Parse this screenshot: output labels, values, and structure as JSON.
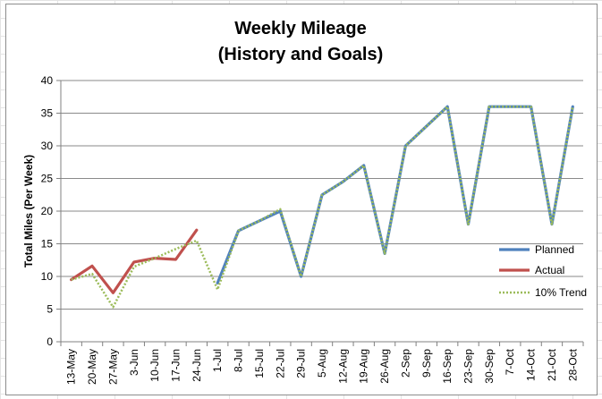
{
  "chart_data": {
    "type": "line",
    "title_lines": [
      "Weekly Mileage",
      "(History and Goals)"
    ],
    "ylabel": "Total Miles (Per Week)",
    "xlabel": "",
    "ylim": [
      0,
      40
    ],
    "yticks": [
      0,
      5,
      10,
      15,
      20,
      25,
      30,
      35,
      40
    ],
    "grid": "horizontal",
    "legend_position": "right",
    "categories": [
      "13-May",
      "20-May",
      "27-May",
      "3-Jun",
      "10-Jun",
      "17-Jun",
      "24-Jun",
      "1-Jul",
      "8-Jul",
      "15-Jul",
      "22-Jul",
      "29-Jul",
      "5-Aug",
      "12-Aug",
      "19-Aug",
      "26-Aug",
      "2-Sep",
      "9-Sep",
      "16-Sep",
      "23-Sep",
      "30-Sep",
      "7-Oct",
      "14-Oct",
      "21-Oct",
      "28-Oct"
    ],
    "series": [
      {
        "name": "Planned",
        "color": "#4f81bd",
        "style": "solid",
        "values": [
          null,
          null,
          null,
          null,
          null,
          null,
          null,
          9,
          17,
          18.5,
          20,
          10,
          22.5,
          24.5,
          27,
          13.5,
          30,
          33,
          36,
          18,
          36,
          36,
          36,
          18,
          36
        ]
      },
      {
        "name": "Actual",
        "color": "#c0504d",
        "style": "solid",
        "values": [
          9.5,
          11.6,
          7.5,
          12.2,
          12.8,
          12.6,
          17.1,
          null,
          null,
          null,
          null,
          null,
          null,
          null,
          null,
          null,
          null,
          null,
          null,
          null,
          null,
          null,
          null,
          null,
          null
        ]
      },
      {
        "name": "10% Trend",
        "color": "#9bbb59",
        "style": "dotted",
        "values": [
          9.5,
          10.4,
          5.3,
          11.5,
          12.8,
          14.2,
          15.5,
          8,
          17,
          18.5,
          20.3,
          10,
          22.5,
          24.5,
          27,
          13.5,
          30,
          33,
          36,
          18,
          36,
          36,
          36,
          18,
          36
        ]
      }
    ]
  }
}
